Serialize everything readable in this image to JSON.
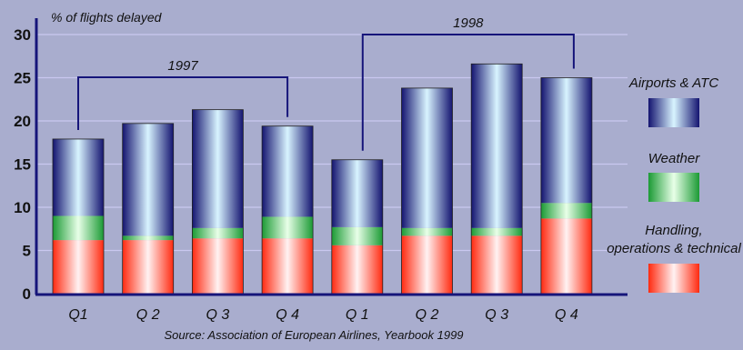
{
  "chart_data": {
    "type": "bar",
    "stacked": true,
    "ylabel": "% of flights delayed",
    "ylim": [
      0,
      30
    ],
    "yticks": [
      "0",
      "5",
      "10",
      "15",
      "20",
      "25",
      "30"
    ],
    "grid": true,
    "categories": [
      "Q1",
      "Q 2",
      "Q 3",
      "Q 4",
      "Q 1",
      "Q 2",
      "Q 3",
      "Q 4"
    ],
    "groups": [
      {
        "label": "1997",
        "from": 0,
        "to": 3
      },
      {
        "label": "1998",
        "from": 4,
        "to": 7
      }
    ],
    "series": [
      {
        "name": "Handling, operations & technical",
        "color": "#ff2a10",
        "values": [
          6.2,
          6.2,
          6.4,
          6.4,
          5.6,
          6.7,
          6.7,
          8.7
        ]
      },
      {
        "name": "Weather",
        "color": "#1e9e3a",
        "values": [
          2.8,
          0.5,
          1.2,
          2.5,
          2.1,
          0.9,
          0.9,
          1.8
        ]
      },
      {
        "name": "Airports & ATC",
        "color": "#16157a",
        "values": [
          8.9,
          13.0,
          13.7,
          10.5,
          7.8,
          16.2,
          19.0,
          14.5
        ]
      }
    ],
    "legend": [
      "Airports & ATC",
      "Weather",
      "Handling, operations & technical"
    ],
    "legend_position": "right",
    "source": "Source: Association of European Airlines, Yearbook 1999"
  }
}
